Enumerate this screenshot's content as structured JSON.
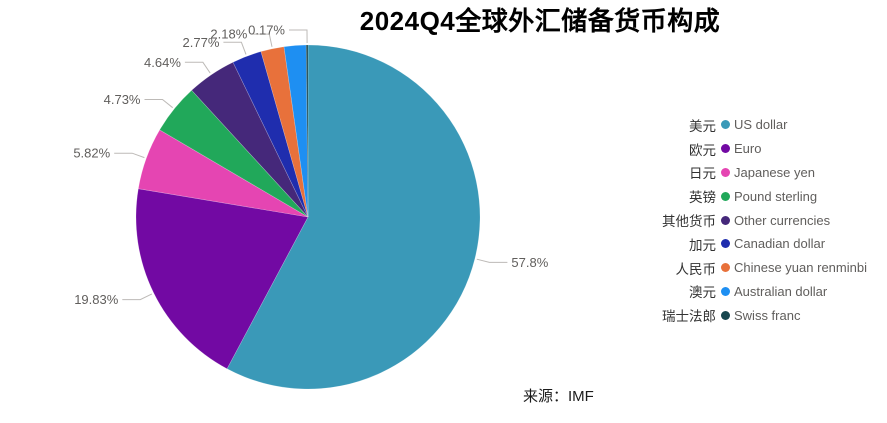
{
  "title": "2024Q4全球外汇储备货币构成",
  "source": "来源：IMF",
  "colors": {
    "background": "#FFFFFF",
    "title_text": "#000000",
    "label_text": "#605E5C",
    "leader_line": "#BDBAB7",
    "legend_cn_text": "#333333",
    "legend_en_text": "#605E5C"
  },
  "chart_data": {
    "type": "pie",
    "title": "2024Q4全球外汇储备货币构成",
    "legend_position": "right",
    "values_unit": "%",
    "start_angle": "12-oclock-clockwise",
    "slices": [
      {
        "name_cn": "美元",
        "name_en": "US dollar",
        "value": 57.8,
        "label": "57.8%",
        "color": "#3A99B8"
      },
      {
        "name_cn": "欧元",
        "name_en": "Euro",
        "value": 19.83,
        "label": "19.83%",
        "color": "#7209A3"
      },
      {
        "name_cn": "日元",
        "name_en": "Japanese yen",
        "value": 5.82,
        "label": "5.82%",
        "color": "#E545B2"
      },
      {
        "name_cn": "英镑",
        "name_en": "Pound sterling",
        "value": 4.73,
        "label": "4.73%",
        "color": "#21A85A"
      },
      {
        "name_cn": "其他货币",
        "name_en": "Other currencies",
        "value": 4.64,
        "label": "4.64%",
        "color": "#45287A"
      },
      {
        "name_cn": "加元",
        "name_en": "Canadian dollar",
        "value": 2.77,
        "label": "2.77%",
        "color": "#1F2DAE"
      },
      {
        "name_cn": "人民币",
        "name_en": "Chinese yuan renminbi",
        "value": 2.18,
        "label": "2.18%",
        "color": "#E8713B"
      },
      {
        "name_cn": "澳元",
        "name_en": "Australian dollar",
        "value": 2.06,
        "label": "",
        "color": "#1E8FF2"
      },
      {
        "name_cn": "瑞士法郎",
        "name_en": "Swiss franc",
        "value": 0.17,
        "label": "0.17%",
        "color": "#17464E"
      }
    ]
  }
}
